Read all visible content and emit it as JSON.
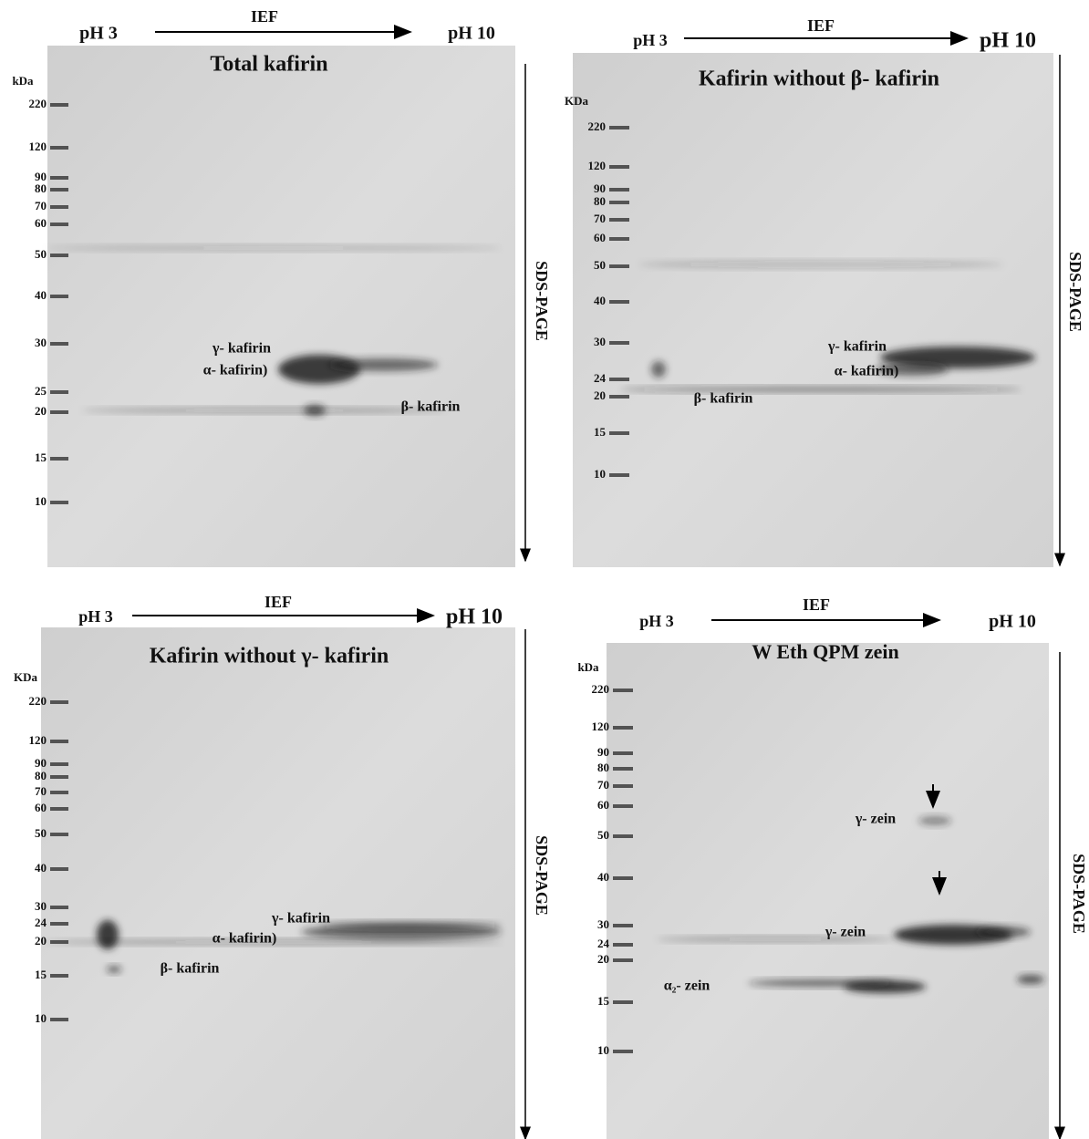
{
  "panels": [
    {
      "ph_left": "pH 3",
      "ief": "IEF",
      "ph_right": "pH 10",
      "title": "Total kafirin",
      "kda": "kDa",
      "markers": [
        220,
        120,
        90,
        80,
        70,
        60,
        50,
        40,
        30,
        25,
        20,
        15,
        10
      ],
      "annotations": [
        "γ- kafirin",
        "α- kafirin)",
        "β- kafirin"
      ],
      "sds_page": "SDS-PAGE"
    },
    {
      "ph_left": "pH 3",
      "ief": "IEF",
      "ph_right": "pH 10",
      "title": "Kafirin without β- kafirin",
      "kda": "KDa",
      "markers": [
        220,
        120,
        90,
        80,
        70,
        60,
        50,
        40,
        30,
        24,
        20,
        15,
        10
      ],
      "annotations": [
        "γ- kafirin",
        "α- kafirin)",
        "β- kafirin"
      ],
      "sds_page": "SDS-PAGE"
    },
    {
      "ph_left": "pH 3",
      "ief": "IEF",
      "ph_right": "pH 10",
      "title": "Kafirin without γ- kafirin",
      "kda": "KDa",
      "markers": [
        220,
        120,
        90,
        80,
        70,
        60,
        50,
        40,
        30,
        24,
        20,
        15,
        10
      ],
      "annotations": [
        "γ- kafirin",
        "α- kafirin)",
        "β- kafirin"
      ],
      "sds_page": "SDS-PAGE"
    },
    {
      "ph_left": "pH 3",
      "ief": "IEF",
      "ph_right": "pH 10",
      "title": "W Eth QPM zein",
      "kda": "kDa",
      "markers": [
        220,
        120,
        90,
        80,
        70,
        60,
        50,
        40,
        30,
        24,
        20,
        15,
        10
      ],
      "annotations": [
        "γ- zein",
        "γ- zein",
        "α₂- zein"
      ],
      "sds_page": "SDS-PAGE"
    }
  ]
}
